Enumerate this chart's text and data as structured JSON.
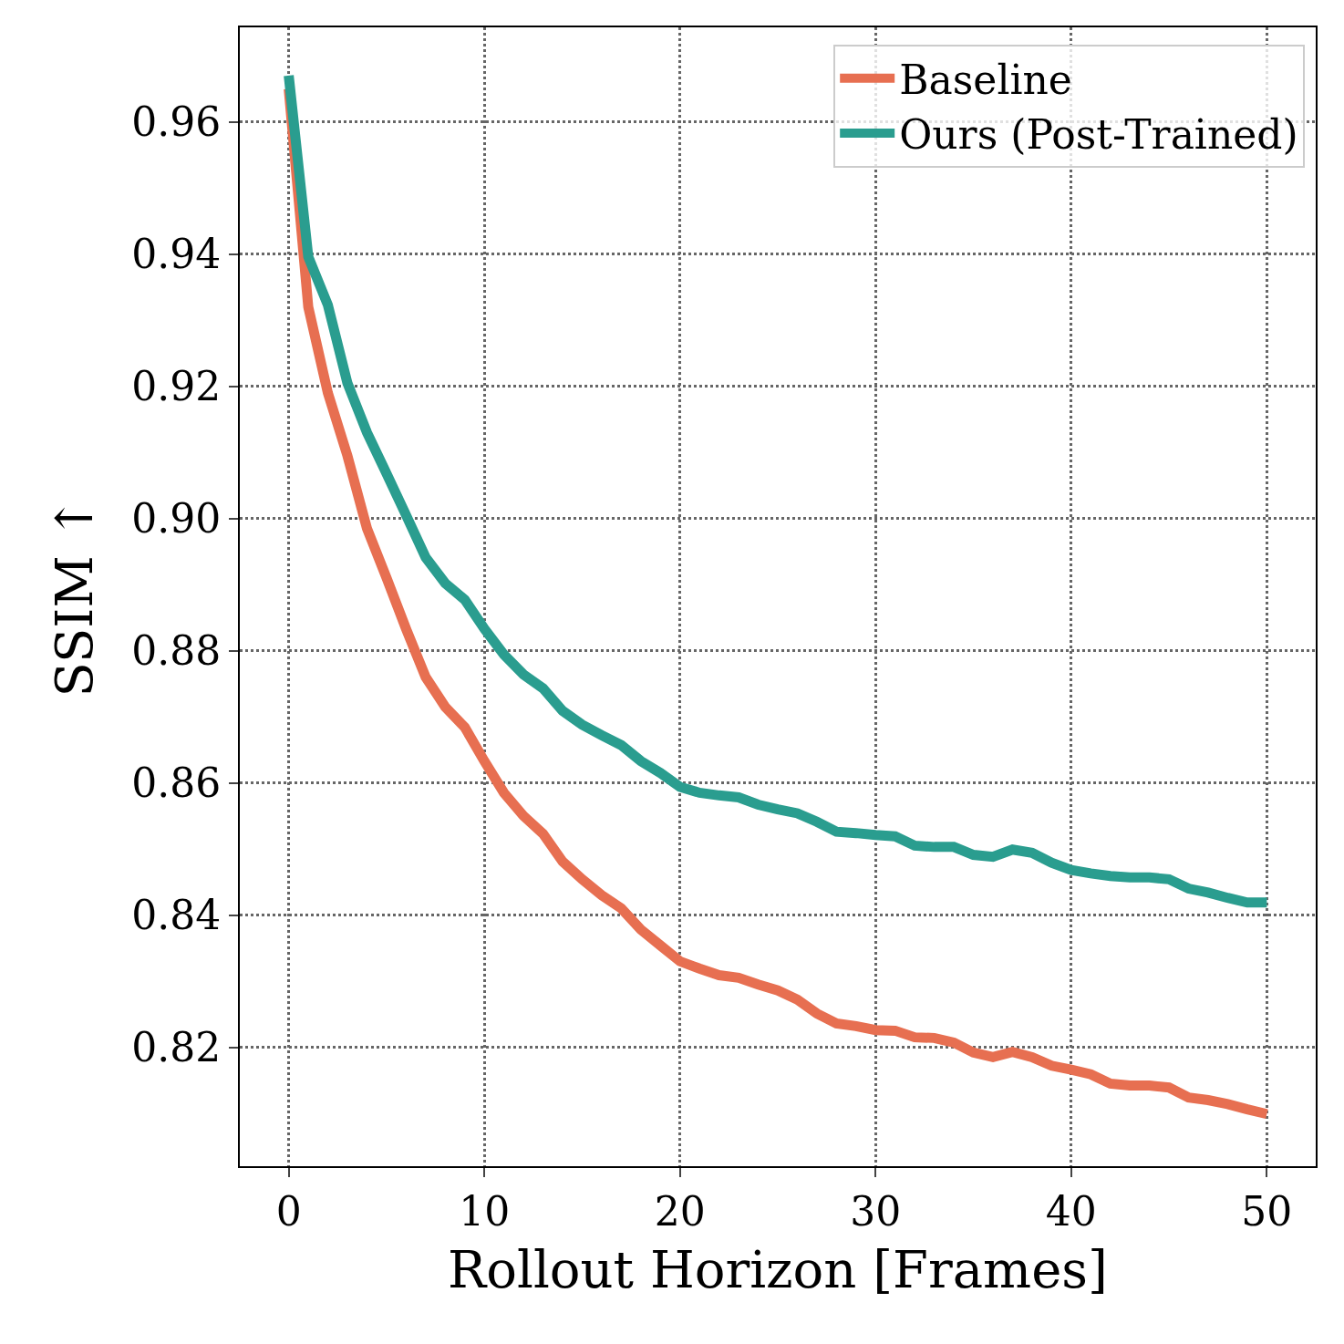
{
  "chart_data": {
    "type": "line",
    "xlabel": "Rollout Horizon [Frames]",
    "ylabel": "SSIM ↑",
    "x": [
      0,
      1,
      2,
      3,
      4,
      5,
      6,
      7,
      8,
      9,
      10,
      11,
      12,
      13,
      14,
      15,
      16,
      17,
      18,
      19,
      20,
      21,
      22,
      23,
      24,
      25,
      26,
      27,
      28,
      29,
      30,
      31,
      32,
      33,
      34,
      35,
      36,
      37,
      38,
      39,
      40,
      41,
      42,
      43,
      44,
      45,
      46,
      47,
      48,
      49,
      50
    ],
    "series": [
      {
        "name": "Baseline",
        "color": "#e76f51",
        "values": [
          0.965,
          0.932,
          0.919,
          0.9095,
          0.8985,
          0.891,
          0.8833,
          0.876,
          0.8715,
          0.8684,
          0.8633,
          0.8585,
          0.855,
          0.8523,
          0.8481,
          0.8454,
          0.843,
          0.841,
          0.8378,
          0.8354,
          0.833,
          0.8319,
          0.8309,
          0.8305,
          0.8295,
          0.8286,
          0.8272,
          0.8251,
          0.8236,
          0.8232,
          0.8226,
          0.8225,
          0.8215,
          0.8214,
          0.8207,
          0.8192,
          0.8185,
          0.8193,
          0.8185,
          0.8172,
          0.8166,
          0.8159,
          0.8145,
          0.8142,
          0.8142,
          0.8139,
          0.8124,
          0.812,
          0.8114,
          0.8106,
          0.8099
        ]
      },
      {
        "name": "Ours (Post-Trained)",
        "color": "#2a9d8f",
        "values": [
          0.967,
          0.9396,
          0.9323,
          0.9205,
          0.913,
          0.9068,
          0.9005,
          0.8941,
          0.8902,
          0.8877,
          0.8833,
          0.8794,
          0.8764,
          0.8743,
          0.8709,
          0.8688,
          0.8672,
          0.8657,
          0.8633,
          0.8615,
          0.8594,
          0.8585,
          0.8581,
          0.8578,
          0.8567,
          0.856,
          0.8554,
          0.8541,
          0.8526,
          0.8524,
          0.8521,
          0.8519,
          0.8505,
          0.8503,
          0.8503,
          0.8491,
          0.8488,
          0.8499,
          0.8494,
          0.8479,
          0.8468,
          0.8463,
          0.8459,
          0.8457,
          0.8457,
          0.8454,
          0.844,
          0.8434,
          0.8426,
          0.8419,
          0.8419
        ]
      }
    ],
    "xlim": [
      -2.5,
      52.5
    ],
    "xticks": [
      0,
      10,
      20,
      30,
      40,
      50
    ],
    "ylim": [
      0.802,
      0.9743
    ],
    "yticks": [
      0.82,
      0.84,
      0.86,
      0.88,
      {
        "value": 0.9,
        "label": "0.90"
      },
      0.92,
      0.94,
      0.96
    ],
    "grid": true,
    "legend": "top right",
    "marker": "none",
    "line_style": "solid"
  }
}
